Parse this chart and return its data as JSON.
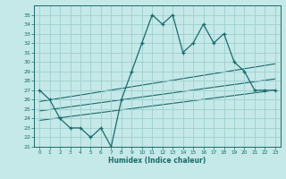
{
  "xlabel": "Humidex (Indice chaleur)",
  "background_color": "#c5e8e8",
  "grid_color": "#9ecece",
  "line_color": "#1a6b6b",
  "xlim": [
    -0.5,
    23.5
  ],
  "ylim": [
    21,
    36
  ],
  "xticks": [
    0,
    1,
    2,
    3,
    4,
    5,
    6,
    7,
    8,
    9,
    10,
    11,
    12,
    13,
    14,
    15,
    16,
    17,
    18,
    19,
    20,
    21,
    22,
    23
  ],
  "yticks": [
    21,
    22,
    23,
    24,
    25,
    26,
    27,
    28,
    29,
    30,
    31,
    32,
    33,
    34,
    35
  ],
  "main_line_x": [
    0,
    1,
    2,
    3,
    4,
    5,
    6,
    7,
    8,
    9,
    10,
    11,
    12,
    13,
    14,
    15,
    16,
    17,
    18,
    19,
    20,
    21,
    22,
    23
  ],
  "main_line_y": [
    27,
    26,
    24,
    23,
    23,
    22,
    23,
    21,
    26,
    29,
    32,
    35,
    34,
    35,
    31,
    32,
    34,
    32,
    33,
    30,
    29,
    27,
    27,
    27
  ],
  "trend1_x": [
    0,
    23
  ],
  "trend1_y": [
    25.8,
    29.8
  ],
  "trend2_x": [
    0,
    23
  ],
  "trend2_y": [
    24.8,
    28.2
  ],
  "trend3_x": [
    0,
    23
  ],
  "trend3_y": [
    23.8,
    27.0
  ]
}
